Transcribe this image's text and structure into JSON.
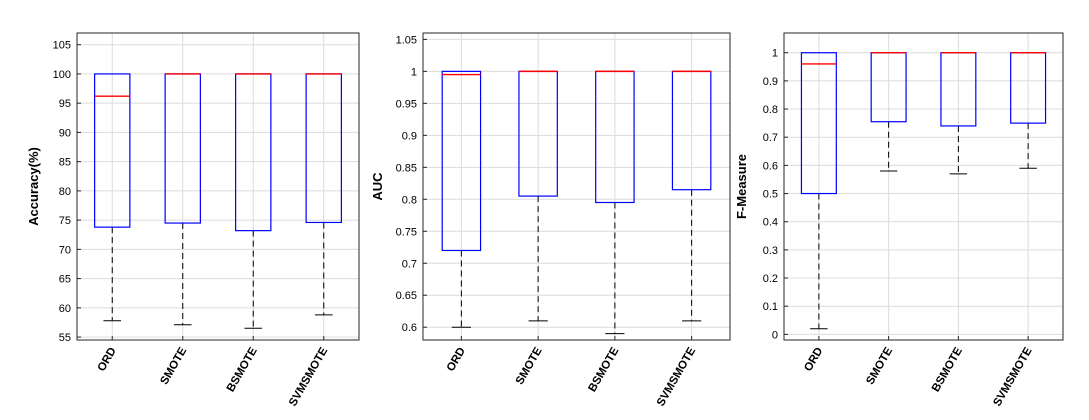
{
  "style": {
    "box_color": "#0000ff",
    "median_color": "#ff0000",
    "whisker_color": "#000000",
    "grid_color": "#dcdcdc",
    "axis_color": "#262626"
  },
  "chart_data": [
    {
      "type": "box",
      "ylabel": "Accuracy(%)",
      "ylim": [
        54.5,
        107
      ],
      "ticks": [
        "55",
        "60",
        "65",
        "70",
        "75",
        "80",
        "85",
        "90",
        "95",
        "100",
        "105"
      ],
      "tick_values": [
        55,
        60,
        65,
        70,
        75,
        80,
        85,
        90,
        95,
        100,
        105
      ],
      "grid": true,
      "categories": [
        "ORD",
        "SMOTE",
        "BSMOTE",
        "SVMSMOTE"
      ],
      "boxes": [
        {
          "name": "ORD",
          "min": 57.8,
          "q1": 73.8,
          "median": 96.2,
          "q3": 100,
          "max": 100
        },
        {
          "name": "SMOTE",
          "min": 57.1,
          "q1": 74.5,
          "median": 100,
          "q3": 100,
          "max": 100
        },
        {
          "name": "BSMOTE",
          "min": 56.5,
          "q1": 73.2,
          "median": 100,
          "q3": 100,
          "max": 100
        },
        {
          "name": "SVMSMOTE",
          "min": 58.8,
          "q1": 74.6,
          "median": 100,
          "q3": 100,
          "max": 100
        }
      ]
    },
    {
      "type": "box",
      "ylabel": "AUC",
      "ylim": [
        0.58,
        1.06
      ],
      "ticks": [
        "0.6",
        "0.65",
        "0.7",
        "0.75",
        "0.8",
        "0.85",
        "0.9",
        "0.95",
        "1",
        "1.05"
      ],
      "tick_values": [
        0.6,
        0.65,
        0.7,
        0.75,
        0.8,
        0.85,
        0.9,
        0.95,
        1.0,
        1.05
      ],
      "grid": true,
      "categories": [
        "ORD",
        "SMOTE",
        "BSMOTE",
        "SVMSMOTE"
      ],
      "boxes": [
        {
          "name": "ORD",
          "min": 0.6,
          "q1": 0.72,
          "median": 0.995,
          "q3": 1.0,
          "max": 1.0
        },
        {
          "name": "SMOTE",
          "min": 0.61,
          "q1": 0.805,
          "median": 1.0,
          "q3": 1.0,
          "max": 1.0
        },
        {
          "name": "BSMOTE",
          "min": 0.59,
          "q1": 0.795,
          "median": 1.0,
          "q3": 1.0,
          "max": 1.0
        },
        {
          "name": "SVMSMOTE",
          "min": 0.61,
          "q1": 0.815,
          "median": 1.0,
          "q3": 1.0,
          "max": 1.0
        }
      ]
    },
    {
      "type": "box",
      "ylabel": "F-Measure",
      "ylim": [
        -0.02,
        1.07
      ],
      "ticks": [
        "0",
        "0.1",
        "0.2",
        "0.3",
        "0.4",
        "0.5",
        "0.6",
        "0.7",
        "0.8",
        "0.9",
        "1"
      ],
      "tick_values": [
        0,
        0.1,
        0.2,
        0.3,
        0.4,
        0.5,
        0.6,
        0.7,
        0.8,
        0.9,
        1.0
      ],
      "grid": true,
      "categories": [
        "ORD",
        "SMOTE",
        "BSMOTE",
        "SVMSMOTE"
      ],
      "boxes": [
        {
          "name": "ORD",
          "min": 0.02,
          "q1": 0.5,
          "median": 0.96,
          "q3": 1.0,
          "max": 1.0
        },
        {
          "name": "SMOTE",
          "min": 0.58,
          "q1": 0.755,
          "median": 1.0,
          "q3": 1.0,
          "max": 1.0
        },
        {
          "name": "BSMOTE",
          "min": 0.57,
          "q1": 0.74,
          "median": 1.0,
          "q3": 1.0,
          "max": 1.0
        },
        {
          "name": "SVMSMOTE",
          "min": 0.59,
          "q1": 0.75,
          "median": 1.0,
          "q3": 1.0,
          "max": 1.0
        }
      ]
    }
  ]
}
